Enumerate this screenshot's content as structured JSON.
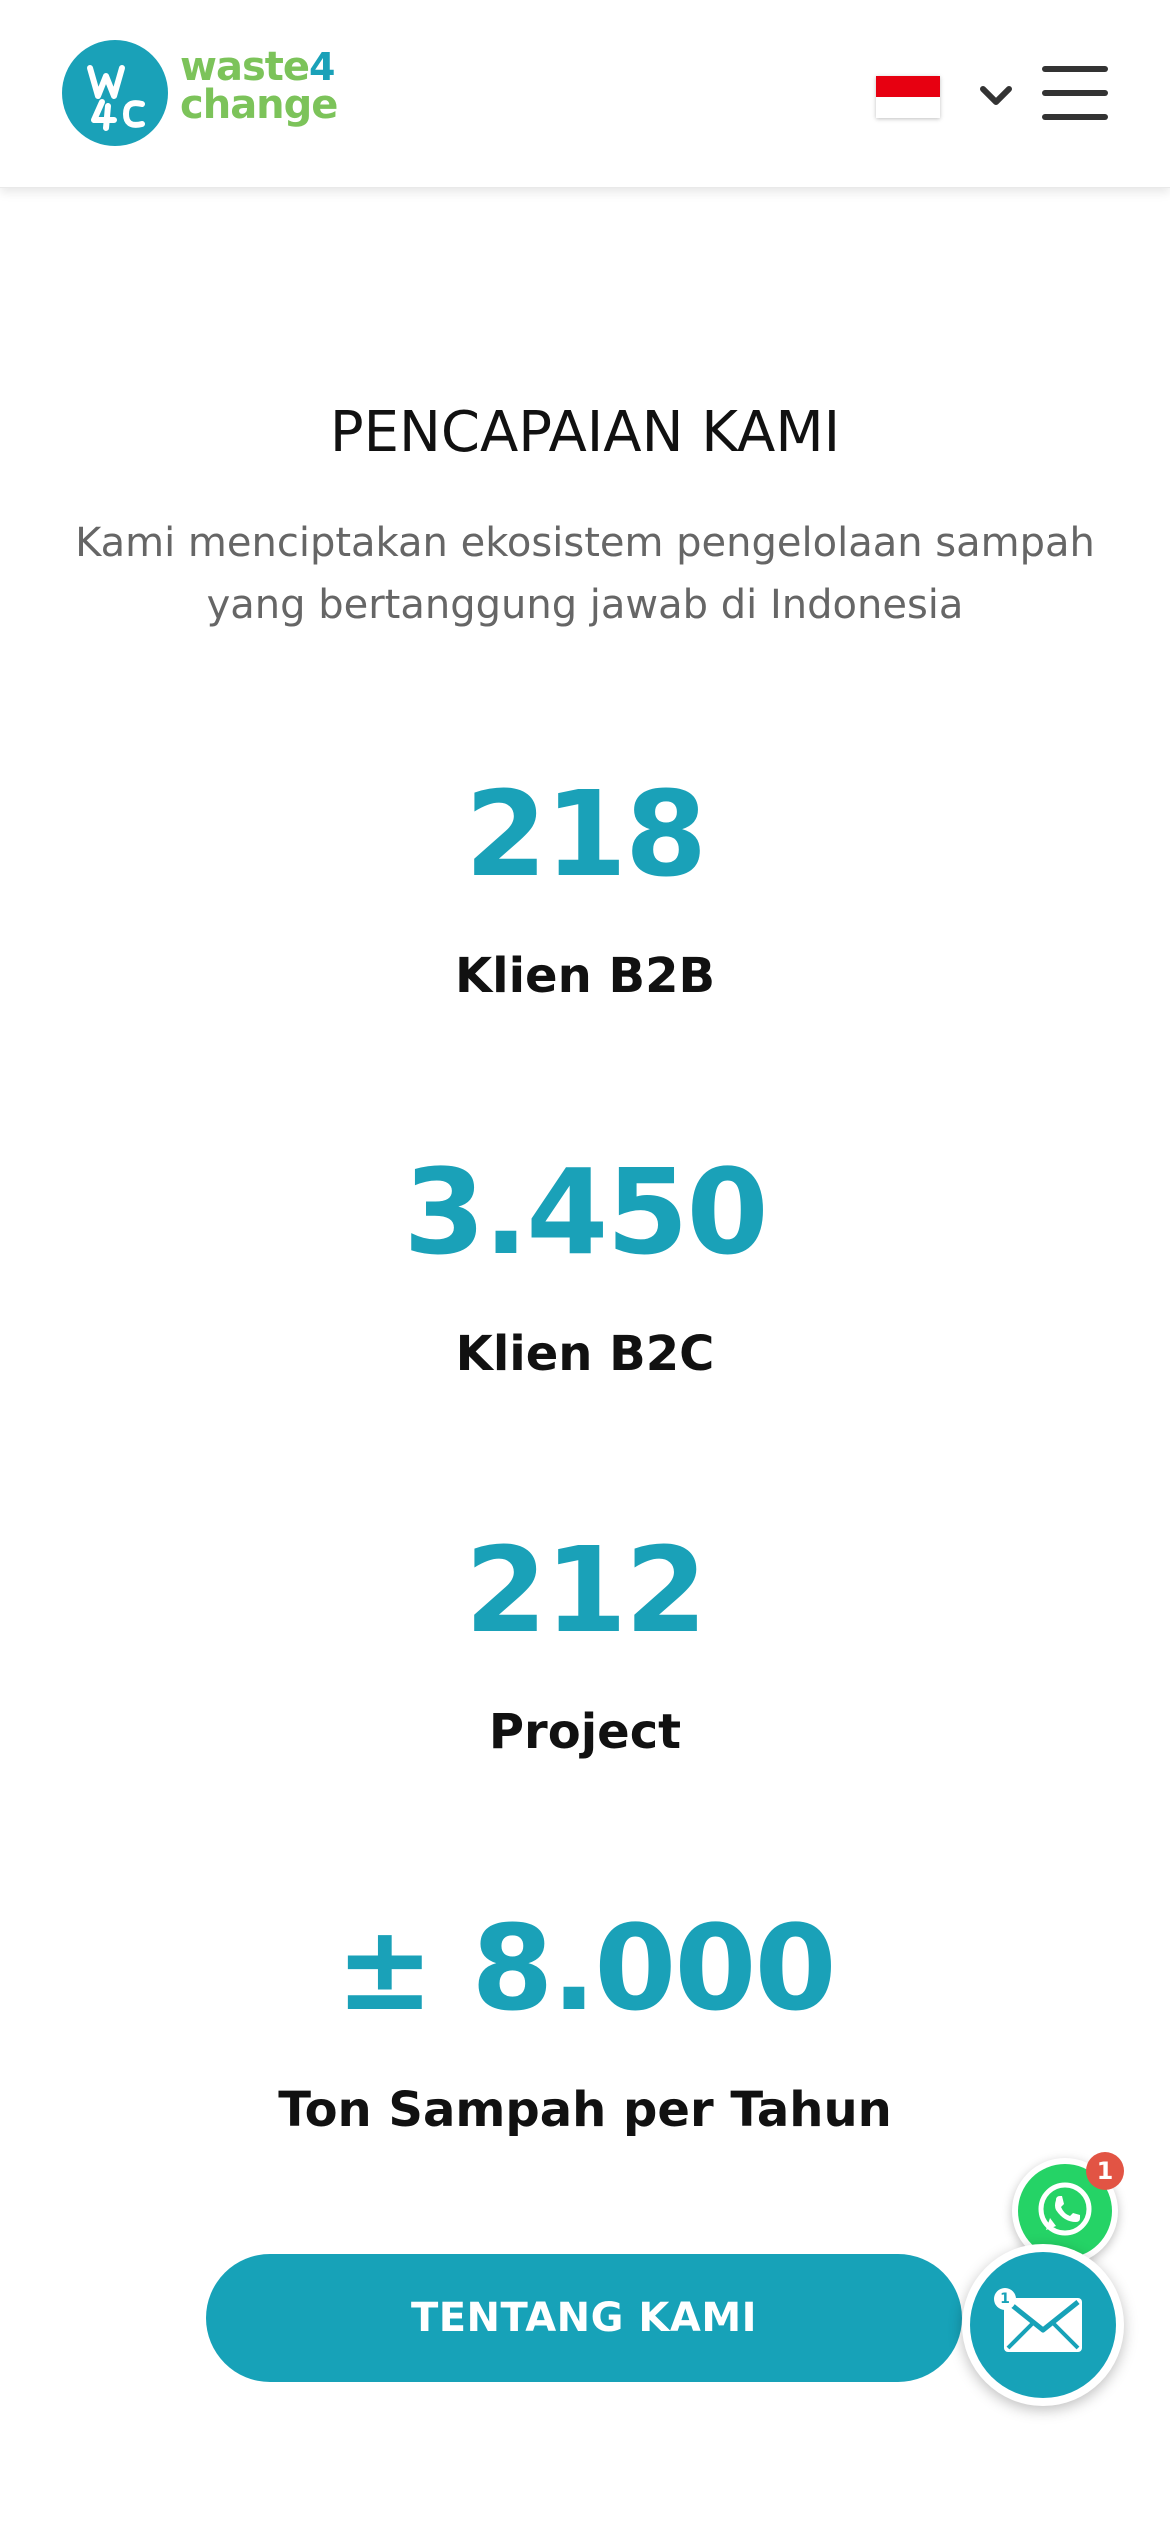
{
  "header": {
    "logo_text_line1": "waste",
    "logo_text_four": "4",
    "logo_text_line2": "change",
    "language_flag": "indonesia-flag",
    "language_flag_colors": {
      "top": "#e70011",
      "bottom": "#ffffff"
    },
    "menu_icon": "hamburger-icon"
  },
  "main": {
    "title": "PENCAPAIAN KAMI",
    "subtitle": "Kami menciptakan ekosistem pengelolaan sampah yang bertanggung jawab di Indonesia",
    "stats": [
      {
        "value": "218",
        "label": "Klien B2B"
      },
      {
        "value": "3.450",
        "label": "Klien B2C"
      },
      {
        "value": "212",
        "label": "Project"
      },
      {
        "value": "± 8.000",
        "label": "Ton Sampah per Tahun"
      }
    ],
    "cta_label": "TENTANG KAMI"
  },
  "floating": {
    "whatsapp_icon": "whatsapp-icon",
    "whatsapp_badge": "1",
    "mail_icon": "envelope-icon",
    "mail_badge": "1"
  },
  "colors": {
    "accent": "#17a2b8",
    "logo_green": "#7cc35a",
    "whatsapp_green": "#25d366",
    "badge_red": "#e25444"
  }
}
